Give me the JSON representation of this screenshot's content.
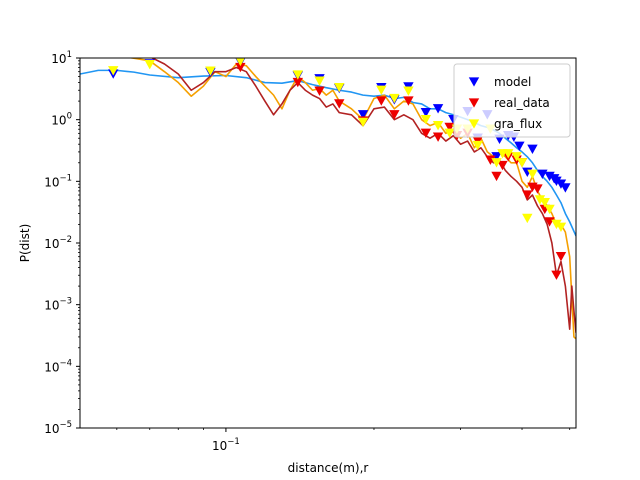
{
  "chart_data": {
    "type": "scatter",
    "title": "",
    "xlabel": "distance(m),r",
    "ylabel": "P(dist)",
    "xscale": "log",
    "yscale": "log",
    "xlim": [
      0.0505,
      0.515
    ],
    "ylim": [
      1e-05,
      10
    ],
    "grid": false,
    "legend": "top-right",
    "x_ticks": [
      {
        "value": 0.1,
        "label": "10",
        "exp": "−1"
      }
    ],
    "y_ticks": [
      {
        "value": 1e-05,
        "label": "10",
        "exp": "−5"
      },
      {
        "value": 0.0001,
        "label": "10",
        "exp": "−4"
      },
      {
        "value": 0.001,
        "label": "10",
        "exp": "−3"
      },
      {
        "value": 0.01,
        "label": "10",
        "exp": "−2"
      },
      {
        "value": 0.1,
        "label": "10",
        "exp": "−1"
      },
      {
        "value": 1,
        "label": "10",
        "exp": "0"
      },
      {
        "value": 10,
        "label": "10",
        "exp": "1"
      }
    ],
    "scatter_series": [
      {
        "name": "model",
        "color": "#0000ff",
        "marker": "triangle-down",
        "points": [
          [
            0.059,
            5.5
          ],
          [
            0.07,
            8.0
          ],
          [
            0.093,
            5.8
          ],
          [
            0.107,
            8.5
          ],
          [
            0.14,
            5.1
          ],
          [
            0.155,
            4.6
          ],
          [
            0.17,
            3.2
          ],
          [
            0.19,
            1.2
          ],
          [
            0.207,
            3.3
          ],
          [
            0.22,
            2.1
          ],
          [
            0.235,
            3.4
          ],
          [
            0.255,
            1.3
          ],
          [
            0.27,
            1.5
          ],
          [
            0.29,
            1.0
          ],
          [
            0.31,
            1.35
          ],
          [
            0.325,
            0.5
          ],
          [
            0.34,
            1.2
          ],
          [
            0.355,
            0.25
          ],
          [
            0.36,
            0.48
          ],
          [
            0.375,
            0.55
          ],
          [
            0.385,
            0.52
          ],
          [
            0.395,
            0.37
          ],
          [
            0.41,
            0.14
          ],
          [
            0.42,
            0.33
          ],
          [
            0.44,
            0.13
          ],
          [
            0.455,
            0.12
          ],
          [
            0.465,
            0.11
          ],
          [
            0.47,
            0.1
          ],
          [
            0.48,
            0.09
          ],
          [
            0.49,
            0.078
          ]
        ]
      },
      {
        "name": "real_data",
        "color": "#ee0000",
        "marker": "triangle-down",
        "points": [
          [
            0.107,
            7.0
          ],
          [
            0.14,
            4.0
          ],
          [
            0.155,
            2.9
          ],
          [
            0.17,
            1.8
          ],
          [
            0.19,
            0.95
          ],
          [
            0.207,
            2.0
          ],
          [
            0.22,
            1.2
          ],
          [
            0.235,
            2.0
          ],
          [
            0.255,
            0.6
          ],
          [
            0.27,
            0.52
          ],
          [
            0.285,
            0.75
          ],
          [
            0.295,
            0.55
          ],
          [
            0.31,
            0.6
          ],
          [
            0.325,
            0.45
          ],
          [
            0.345,
            0.22
          ],
          [
            0.355,
            0.12
          ],
          [
            0.365,
            0.18
          ],
          [
            0.375,
            0.25
          ],
          [
            0.39,
            0.22
          ],
          [
            0.4,
            0.2
          ],
          [
            0.41,
            0.06
          ],
          [
            0.42,
            0.08
          ],
          [
            0.43,
            0.075
          ],
          [
            0.445,
            0.035
          ],
          [
            0.455,
            0.022
          ],
          [
            0.47,
            0.003
          ],
          [
            0.48,
            0.006
          ]
        ]
      },
      {
        "name": "gra_flux",
        "color": "#ffff00",
        "marker": "triangle-down",
        "points": [
          [
            0.059,
            6.2
          ],
          [
            0.07,
            7.8
          ],
          [
            0.093,
            6.1
          ],
          [
            0.107,
            8.8
          ],
          [
            0.14,
            5.3
          ],
          [
            0.155,
            4.2
          ],
          [
            0.17,
            3.3
          ],
          [
            0.19,
            0.9
          ],
          [
            0.207,
            3.0
          ],
          [
            0.22,
            2.2
          ],
          [
            0.235,
            2.9
          ],
          [
            0.255,
            1.0
          ],
          [
            0.27,
            0.8
          ],
          [
            0.285,
            0.6
          ],
          [
            0.295,
            0.7
          ],
          [
            0.31,
            0.7
          ],
          [
            0.325,
            0.38
          ],
          [
            0.345,
            0.7
          ],
          [
            0.355,
            0.2
          ],
          [
            0.365,
            0.28
          ],
          [
            0.375,
            0.28
          ],
          [
            0.39,
            0.25
          ],
          [
            0.4,
            0.2
          ],
          [
            0.41,
            0.025
          ],
          [
            0.42,
            0.13
          ],
          [
            0.435,
            0.05
          ],
          [
            0.445,
            0.045
          ],
          [
            0.455,
            0.035
          ],
          [
            0.47,
            0.02
          ],
          [
            0.48,
            0.018
          ]
        ]
      }
    ],
    "line_series": [
      {
        "color": "#2196f3",
        "points": [
          [
            0.0505,
            5.5
          ],
          [
            0.055,
            6.3
          ],
          [
            0.06,
            6.3
          ],
          [
            0.065,
            5.9
          ],
          [
            0.07,
            5.3
          ],
          [
            0.08,
            4.8
          ],
          [
            0.09,
            5.1
          ],
          [
            0.1,
            5.2
          ],
          [
            0.11,
            4.8
          ],
          [
            0.12,
            4.0
          ],
          [
            0.13,
            3.9
          ],
          [
            0.14,
            4.3
          ],
          [
            0.15,
            3.7
          ],
          [
            0.16,
            3.3
          ],
          [
            0.17,
            3.0
          ],
          [
            0.18,
            2.8
          ],
          [
            0.19,
            2.5
          ],
          [
            0.2,
            2.4
          ],
          [
            0.21,
            2.5
          ],
          [
            0.22,
            2.2
          ],
          [
            0.23,
            2.3
          ],
          [
            0.24,
            1.9
          ],
          [
            0.25,
            1.8
          ],
          [
            0.26,
            1.5
          ],
          [
            0.27,
            1.5
          ],
          [
            0.28,
            1.3
          ],
          [
            0.29,
            1.2
          ],
          [
            0.3,
            1.1
          ],
          [
            0.31,
            1.0
          ],
          [
            0.32,
            0.9
          ],
          [
            0.33,
            0.8
          ],
          [
            0.34,
            0.75
          ],
          [
            0.35,
            0.68
          ],
          [
            0.36,
            0.6
          ],
          [
            0.37,
            0.5
          ],
          [
            0.38,
            0.42
          ],
          [
            0.39,
            0.35
          ],
          [
            0.4,
            0.3
          ],
          [
            0.41,
            0.25
          ],
          [
            0.42,
            0.2
          ],
          [
            0.43,
            0.15
          ],
          [
            0.44,
            0.12
          ],
          [
            0.45,
            0.1
          ],
          [
            0.46,
            0.08
          ],
          [
            0.47,
            0.06
          ],
          [
            0.48,
            0.045
          ],
          [
            0.49,
            0.03
          ],
          [
            0.5,
            0.022
          ],
          [
            0.515,
            0.013
          ]
        ]
      },
      {
        "color": "#f5a000",
        "points": [
          [
            0.0505,
            12
          ],
          [
            0.06,
            11
          ],
          [
            0.07,
            9.0
          ],
          [
            0.075,
            6.0
          ],
          [
            0.08,
            4.0
          ],
          [
            0.085,
            2.4
          ],
          [
            0.09,
            3.5
          ],
          [
            0.095,
            6.0
          ],
          [
            0.1,
            5.0
          ],
          [
            0.105,
            8.0
          ],
          [
            0.11,
            7.5
          ],
          [
            0.115,
            5.0
          ],
          [
            0.12,
            3.5
          ],
          [
            0.125,
            2.5
          ],
          [
            0.13,
            1.5
          ],
          [
            0.135,
            3.0
          ],
          [
            0.14,
            5.0
          ],
          [
            0.145,
            4.0
          ],
          [
            0.15,
            3.0
          ],
          [
            0.155,
            3.2
          ],
          [
            0.16,
            2.5
          ],
          [
            0.165,
            3.0
          ],
          [
            0.17,
            2.0
          ],
          [
            0.18,
            1.5
          ],
          [
            0.19,
            1.0
          ],
          [
            0.2,
            2.2
          ],
          [
            0.21,
            2.5
          ],
          [
            0.22,
            1.5
          ],
          [
            0.23,
            2.0
          ],
          [
            0.24,
            1.8
          ],
          [
            0.25,
            1.0
          ],
          [
            0.26,
            0.8
          ],
          [
            0.27,
            0.9
          ],
          [
            0.28,
            0.6
          ],
          [
            0.29,
            0.7
          ],
          [
            0.3,
            0.5
          ],
          [
            0.31,
            0.6
          ],
          [
            0.32,
            0.35
          ],
          [
            0.33,
            0.5
          ],
          [
            0.34,
            0.3
          ],
          [
            0.35,
            0.25
          ],
          [
            0.36,
            0.3
          ],
          [
            0.37,
            0.25
          ],
          [
            0.38,
            0.2
          ],
          [
            0.39,
            0.2
          ],
          [
            0.4,
            0.1
          ],
          [
            0.41,
            0.08
          ],
          [
            0.42,
            0.12
          ],
          [
            0.43,
            0.07
          ],
          [
            0.44,
            0.05
          ],
          [
            0.45,
            0.04
          ],
          [
            0.46,
            0.03
          ],
          [
            0.47,
            0.02
          ],
          [
            0.48,
            0.02
          ],
          [
            0.49,
            0.015
          ],
          [
            0.5,
            0.006
          ],
          [
            0.51,
            0.0003
          ],
          [
            0.515,
            0.00028
          ]
        ]
      },
      {
        "color": "#b22222",
        "points": [
          [
            0.0505,
            12
          ],
          [
            0.06,
            11.5
          ],
          [
            0.07,
            10.5
          ],
          [
            0.075,
            8.0
          ],
          [
            0.08,
            5.5
          ],
          [
            0.085,
            3.0
          ],
          [
            0.09,
            4.0
          ],
          [
            0.095,
            6.0
          ],
          [
            0.1,
            6.0
          ],
          [
            0.105,
            7.0
          ],
          [
            0.11,
            6.0
          ],
          [
            0.115,
            3.5
          ],
          [
            0.12,
            2.0
          ],
          [
            0.125,
            1.2
          ],
          [
            0.13,
            1.8
          ],
          [
            0.135,
            3.0
          ],
          [
            0.14,
            4.0
          ],
          [
            0.145,
            3.0
          ],
          [
            0.15,
            2.5
          ],
          [
            0.155,
            2.2
          ],
          [
            0.16,
            1.6
          ],
          [
            0.165,
            1.8
          ],
          [
            0.17,
            1.3
          ],
          [
            0.18,
            1.2
          ],
          [
            0.19,
            0.8
          ],
          [
            0.2,
            1.5
          ],
          [
            0.21,
            1.6
          ],
          [
            0.22,
            1.0
          ],
          [
            0.23,
            1.2
          ],
          [
            0.24,
            1.0
          ],
          [
            0.25,
            0.6
          ],
          [
            0.26,
            0.5
          ],
          [
            0.27,
            0.6
          ],
          [
            0.28,
            0.45
          ],
          [
            0.29,
            0.55
          ],
          [
            0.3,
            0.4
          ],
          [
            0.31,
            0.45
          ],
          [
            0.32,
            0.3
          ],
          [
            0.33,
            0.35
          ],
          [
            0.34,
            0.25
          ],
          [
            0.35,
            0.2
          ],
          [
            0.36,
            0.22
          ],
          [
            0.37,
            0.15
          ],
          [
            0.38,
            0.12
          ],
          [
            0.39,
            0.1
          ],
          [
            0.4,
            0.08
          ],
          [
            0.41,
            0.05
          ],
          [
            0.42,
            0.06
          ],
          [
            0.43,
            0.04
          ],
          [
            0.44,
            0.03
          ],
          [
            0.45,
            0.02
          ],
          [
            0.46,
            0.01
          ],
          [
            0.47,
            0.003
          ],
          [
            0.48,
            0.005
          ],
          [
            0.49,
            0.002
          ],
          [
            0.5,
            0.0004
          ],
          [
            0.505,
            0.002
          ],
          [
            0.51,
            0.0008
          ],
          [
            0.515,
            0.00035
          ]
        ]
      }
    ]
  }
}
